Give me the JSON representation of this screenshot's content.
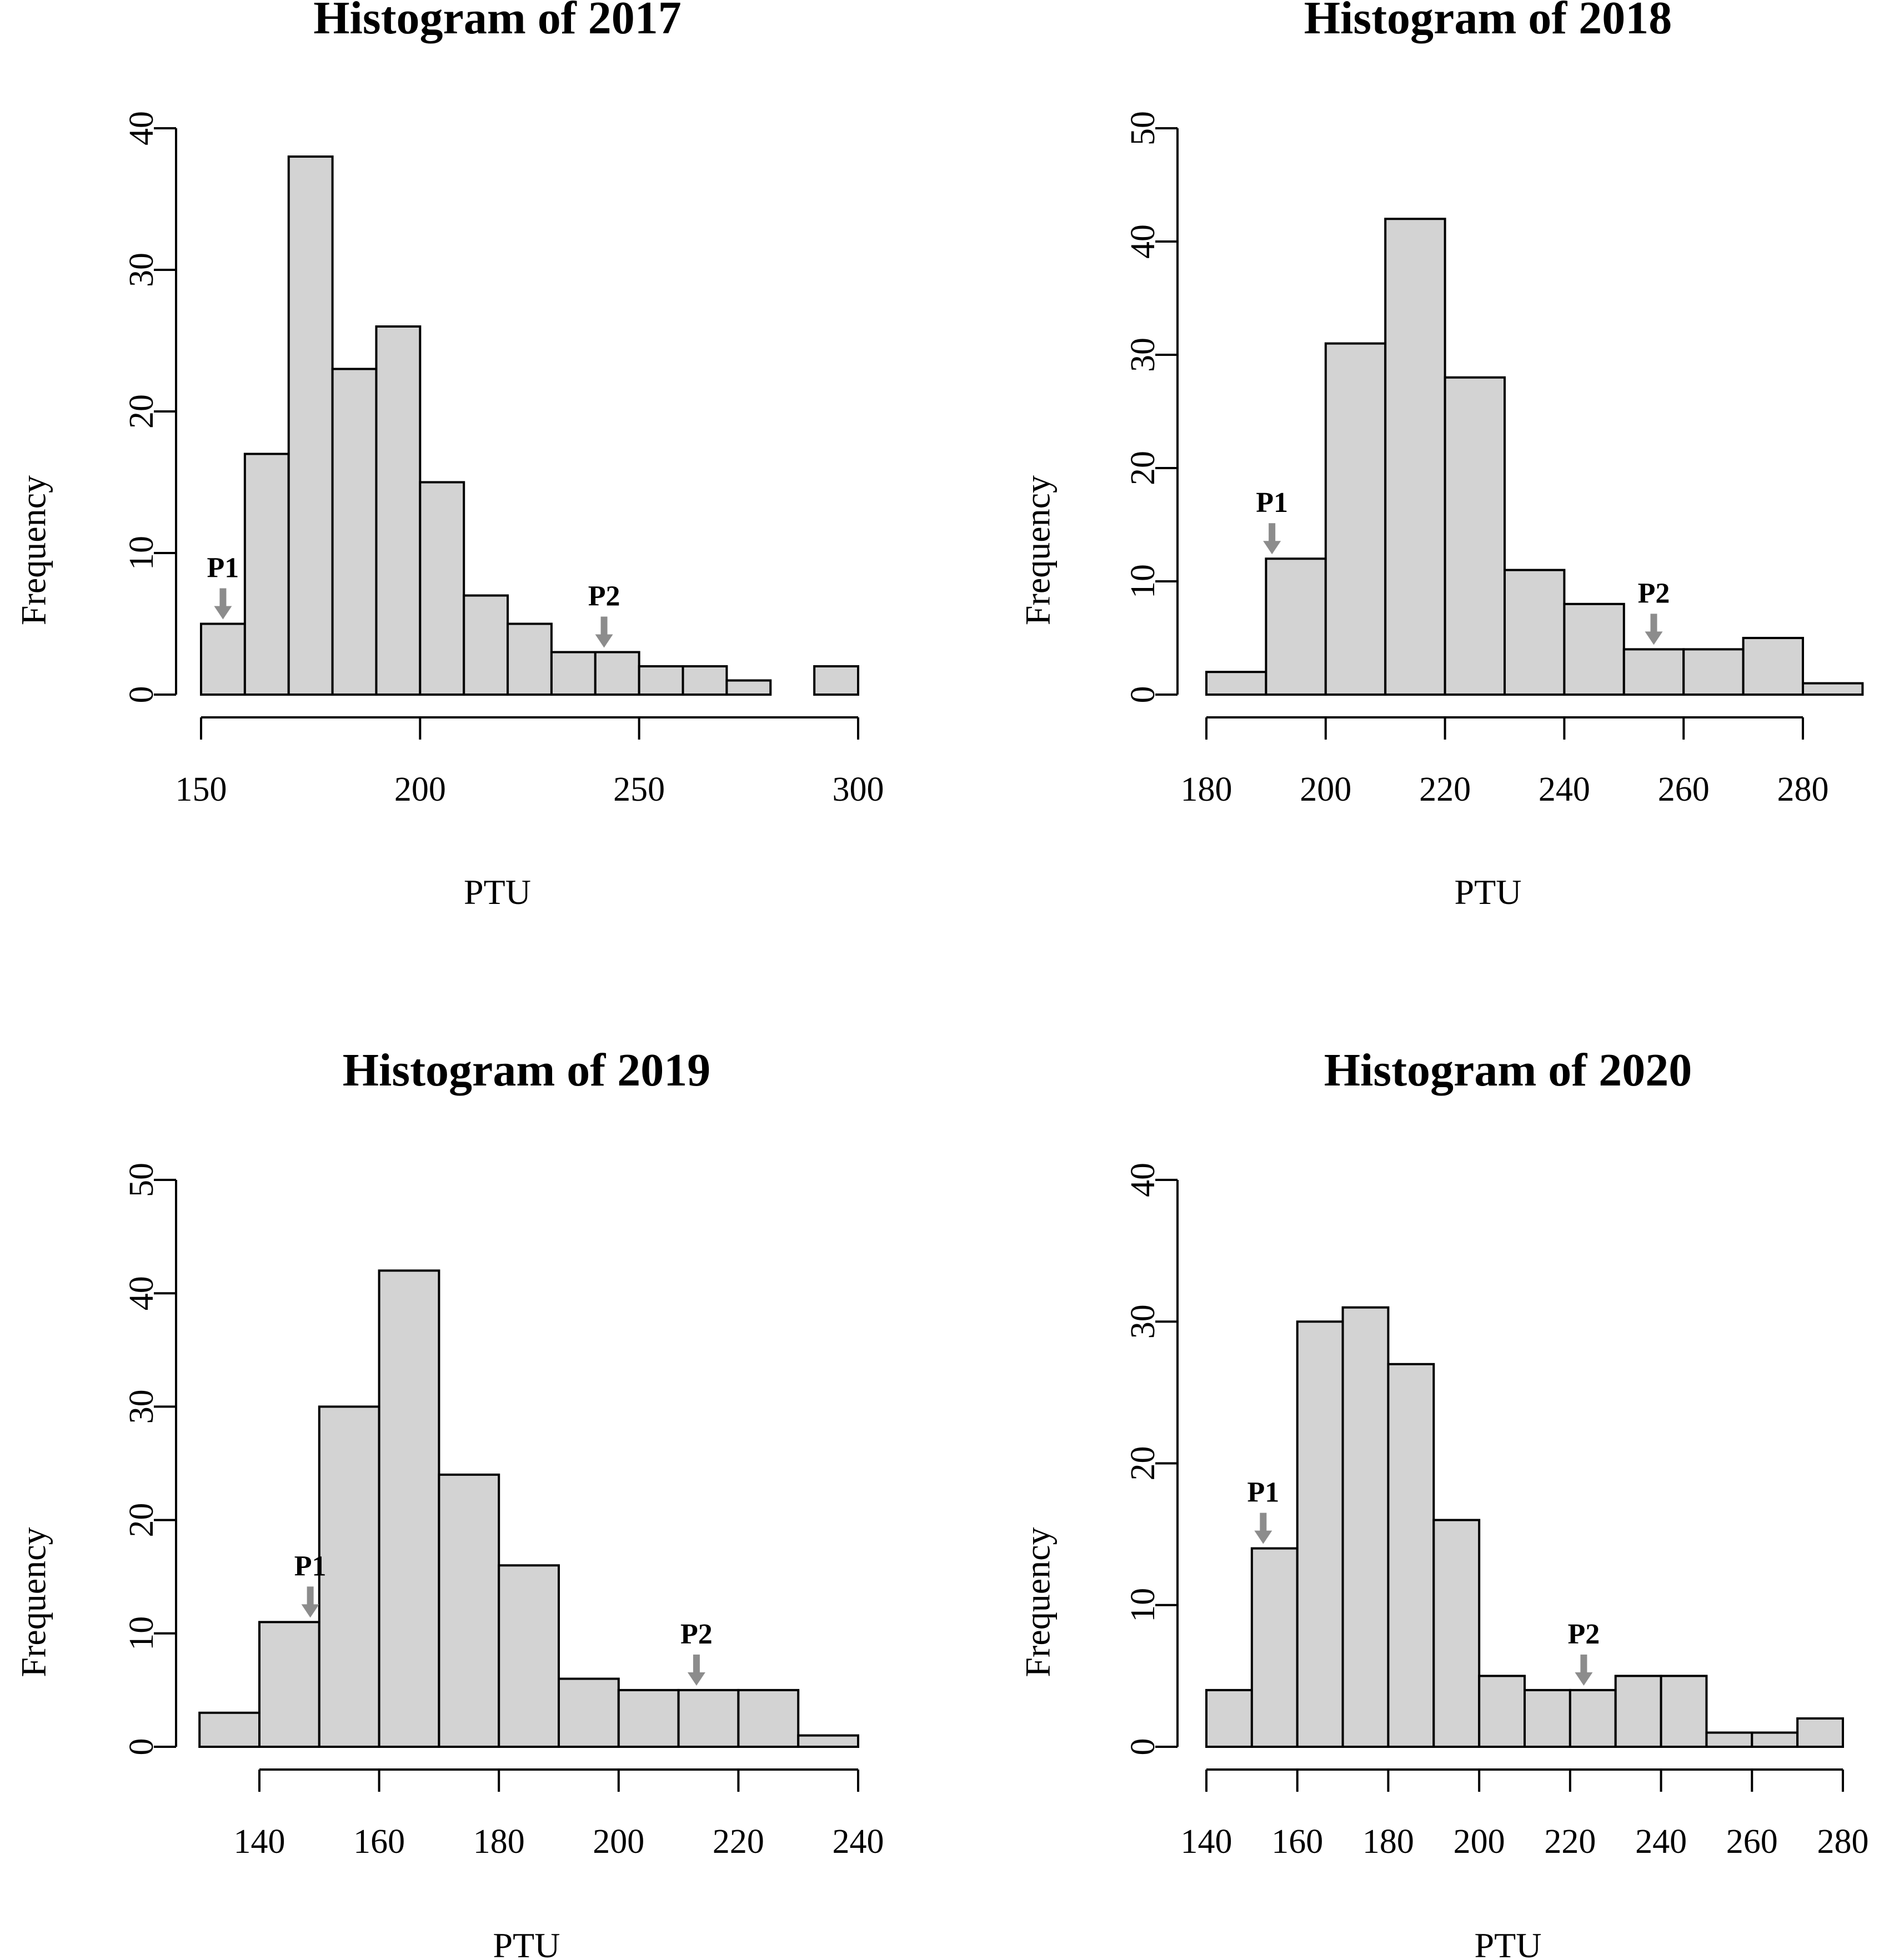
{
  "chart_data": [
    {
      "type": "bar",
      "title": "Histogram of 2017",
      "xlabel": "PTU",
      "ylabel": "Frequency",
      "bin_edges": [
        150,
        160,
        170,
        180,
        190,
        200,
        210,
        220,
        230,
        240,
        250,
        260,
        270,
        280,
        290,
        300
      ],
      "values": [
        5,
        17,
        38,
        23,
        26,
        15,
        7,
        5,
        3,
        3,
        2,
        2,
        1,
        0,
        2
      ],
      "xlim": [
        150,
        300
      ],
      "ylim": [
        0,
        40
      ],
      "xticks": [
        150,
        200,
        250,
        300
      ],
      "yticks": [
        0,
        10,
        20,
        30,
        40
      ],
      "annotations": [
        {
          "label": "P1",
          "x": 155,
          "y": 5
        },
        {
          "label": "P2",
          "x": 242,
          "y": 3
        }
      ],
      "bar_color": "#d3d3d3",
      "arrow_color": "#8c8c8c"
    },
    {
      "type": "bar",
      "title": "Histogram of 2018",
      "xlabel": "PTU",
      "ylabel": "Frequency",
      "bin_edges": [
        180,
        190,
        200,
        210,
        220,
        230,
        240,
        250,
        260,
        270,
        280,
        290
      ],
      "values": [
        2,
        12,
        31,
        42,
        28,
        11,
        8,
        4,
        4,
        5,
        1
      ],
      "xlim": [
        180,
        280
      ],
      "ylim": [
        0,
        50
      ],
      "xticks": [
        180,
        200,
        220,
        240,
        260,
        280
      ],
      "yticks": [
        0,
        10,
        20,
        30,
        40,
        50
      ],
      "annotations": [
        {
          "label": "P1",
          "x": 191,
          "y": 12
        },
        {
          "label": "P2",
          "x": 255,
          "y": 4
        }
      ],
      "bar_color": "#d3d3d3",
      "arrow_color": "#8c8c8c"
    },
    {
      "type": "bar",
      "title": "Histogram of 2019",
      "xlabel": "PTU",
      "ylabel": "Frequency",
      "bin_edges": [
        130,
        140,
        150,
        160,
        170,
        180,
        190,
        200,
        210,
        220,
        230,
        240
      ],
      "values": [
        3,
        11,
        30,
        42,
        24,
        16,
        6,
        5,
        5,
        5,
        1
      ],
      "xlim": [
        140,
        240
      ],
      "ylim": [
        0,
        50
      ],
      "xticks": [
        140,
        160,
        180,
        200,
        220,
        240
      ],
      "yticks": [
        0,
        10,
        20,
        30,
        40,
        50
      ],
      "annotations": [
        {
          "label": "P1",
          "x": 148.5,
          "y": 11
        },
        {
          "label": "P2",
          "x": 213,
          "y": 5
        }
      ],
      "bar_color": "#d3d3d3",
      "arrow_color": "#8c8c8c"
    },
    {
      "type": "bar",
      "title": "Histogram of 2020",
      "xlabel": "PTU",
      "ylabel": "Frequency",
      "bin_edges": [
        140,
        150,
        160,
        170,
        180,
        190,
        200,
        210,
        220,
        230,
        240,
        250,
        260,
        270,
        280
      ],
      "values": [
        4,
        14,
        30,
        31,
        27,
        16,
        5,
        4,
        4,
        5,
        5,
        1,
        1,
        2
      ],
      "xlim": [
        140,
        280
      ],
      "ylim": [
        0,
        40
      ],
      "xticks": [
        140,
        160,
        180,
        200,
        220,
        240,
        260,
        280
      ],
      "yticks": [
        0,
        10,
        20,
        30,
        40
      ],
      "annotations": [
        {
          "label": "P1",
          "x": 152.5,
          "y": 14
        },
        {
          "label": "P2",
          "x": 223,
          "y": 4
        }
      ],
      "bar_color": "#d3d3d3",
      "arrow_color": "#8c8c8c"
    }
  ]
}
